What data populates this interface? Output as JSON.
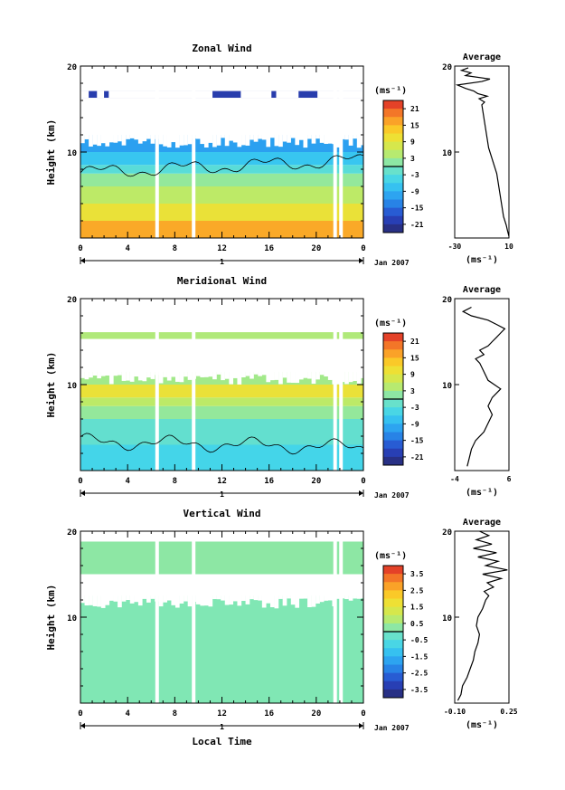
{
  "figure": {
    "x_label": "Local Time",
    "colorbar_unit": "(ms⁻¹)",
    "profile_unit": "(ms⁻¹)"
  },
  "chart_data": [
    {
      "type": "heatmap",
      "title": "Zonal Wind",
      "ylabel": "Height (km)",
      "xlim": [
        0,
        24
      ],
      "ylim": [
        0,
        20
      ],
      "x_ticks": [
        "0",
        "4",
        "8",
        "12",
        "16",
        "20",
        "0"
      ],
      "y_ticks": [
        "10",
        "20"
      ],
      "date_label": "1",
      "month_label": "Jan 2007",
      "colorbar": {
        "min": -24,
        "max": 24,
        "ticks": [
          "21",
          "15",
          "9",
          "3",
          "-3",
          "-9",
          "-15",
          "-21"
        ]
      },
      "profile": {
        "title": "Average",
        "xlim": [
          -30,
          10
        ],
        "x_ticks": [
          "-30",
          "10"
        ],
        "y_ticks": [
          "10",
          "20"
        ],
        "points": [
          [
            10,
            0.2
          ],
          [
            9,
            0.8
          ],
          [
            8,
            1.5
          ],
          [
            6,
            2.5
          ],
          [
            5,
            3.5
          ],
          [
            4,
            4.5
          ],
          [
            3,
            5.5
          ],
          [
            2,
            6.5
          ],
          [
            1,
            7.5
          ],
          [
            -1,
            8.5
          ],
          [
            -3,
            9.5
          ],
          [
            -5,
            10.5
          ],
          [
            -6,
            11.5
          ],
          [
            -7,
            12.5
          ],
          [
            -8,
            13.5
          ],
          [
            -9,
            14.5
          ],
          [
            -10,
            15.5
          ],
          [
            -8,
            15.8
          ],
          [
            -12,
            16.2
          ],
          [
            -6,
            16.5
          ],
          [
            -13,
            16.8
          ],
          [
            -16,
            17.1
          ],
          [
            -22,
            17.4
          ],
          [
            -28,
            17.8
          ],
          [
            -10,
            18.2
          ],
          [
            -4,
            18.5
          ],
          [
            -22,
            18.9
          ],
          [
            -18,
            19.2
          ],
          [
            -25,
            19.5
          ],
          [
            -20,
            19.8
          ]
        ]
      },
      "gaps": [
        6.5,
        9.6,
        21.6,
        22.1
      ],
      "valid_top": 12.0,
      "upper_band": [
        16.3,
        17.1
      ],
      "bands": [
        {
          "z0": 0,
          "z1": 2,
          "value": 16
        },
        {
          "z0": 2,
          "z1": 4,
          "value": 10
        },
        {
          "z0": 4,
          "z1": 6,
          "value": 5
        },
        {
          "z0": 6,
          "z1": 7.5,
          "value": 2
        },
        {
          "z0": 7.5,
          "z1": 8.5,
          "value": -3
        },
        {
          "z0": 8.5,
          "z1": 10,
          "value": -7
        },
        {
          "z0": 10,
          "z1": 12,
          "value": -11
        },
        {
          "z0": 16.3,
          "z1": 17.1,
          "value": -20
        }
      ]
    },
    {
      "type": "heatmap",
      "title": "Meridional Wind",
      "ylabel": "Height (km)",
      "xlim": [
        0,
        24
      ],
      "ylim": [
        0,
        20
      ],
      "x_ticks": [
        "0",
        "4",
        "8",
        "12",
        "16",
        "20",
        "0"
      ],
      "y_ticks": [
        "10",
        "20"
      ],
      "date_label": "1",
      "month_label": "Jan 2007",
      "colorbar": {
        "min": -24,
        "max": 24,
        "ticks": [
          "21",
          "15",
          "9",
          "3",
          "-3",
          "-9",
          "-15",
          "-21"
        ]
      },
      "profile": {
        "title": "Average",
        "xlim": [
          -6,
          7
        ],
        "x_ticks": [
          "-4",
          "6"
        ],
        "y_ticks": [
          "10",
          "20"
        ],
        "points": [
          [
            -3,
            0.5
          ],
          [
            -2.5,
            1.5
          ],
          [
            -2,
            2.5
          ],
          [
            -1,
            3.5
          ],
          [
            1,
            4.5
          ],
          [
            2,
            5.5
          ],
          [
            3,
            6.5
          ],
          [
            2,
            7.5
          ],
          [
            3,
            8.5
          ],
          [
            5,
            9.5
          ],
          [
            2,
            10.5
          ],
          [
            1,
            11.5
          ],
          [
            0,
            12.5
          ],
          [
            -1,
            13
          ],
          [
            1,
            13.5
          ],
          [
            0,
            14
          ],
          [
            2,
            14.5
          ],
          [
            3,
            15
          ],
          [
            4,
            15.5
          ],
          [
            5,
            16
          ],
          [
            6,
            16.5
          ],
          [
            4,
            17
          ],
          [
            2,
            17.5
          ],
          [
            -2,
            18
          ],
          [
            -4,
            18.5
          ],
          [
            -2,
            19
          ]
        ]
      },
      "gaps": [
        6.5,
        9.6,
        21.6,
        22.1
      ],
      "valid_top": 11.5,
      "upper_band": [
        15.3,
        16.1
      ],
      "bands": [
        {
          "z0": 0,
          "z1": 3,
          "value": -5
        },
        {
          "z0": 3,
          "z1": 6,
          "value": -2
        },
        {
          "z0": 6,
          "z1": 7.5,
          "value": 2
        },
        {
          "z0": 7.5,
          "z1": 8.5,
          "value": 5
        },
        {
          "z0": 8.5,
          "z1": 10,
          "value": 10
        },
        {
          "z0": 10,
          "z1": 11.5,
          "value": 3
        },
        {
          "z0": 15.3,
          "z1": 16.1,
          "value": 4
        }
      ]
    },
    {
      "type": "heatmap",
      "title": "Vertical Wind",
      "ylabel": "Height (km)",
      "xlim": [
        0,
        24
      ],
      "ylim": [
        0,
        20
      ],
      "x_ticks": [
        "0",
        "4",
        "8",
        "12",
        "16",
        "20",
        "0"
      ],
      "y_ticks": [
        "10",
        "20"
      ],
      "date_label": "1",
      "month_label": "Jan 2007",
      "colorbar": {
        "min": -4,
        "max": 4,
        "ticks": [
          "3.5",
          "2.5",
          "1.5",
          "0.5",
          "-0.5",
          "-1.5",
          "-2.5",
          "-3.5"
        ]
      },
      "profile": {
        "title": "Average",
        "xlim": [
          -0.1,
          0.25
        ],
        "x_ticks": [
          "-0.10",
          "0.25"
        ],
        "y_ticks": [
          "10",
          "20"
        ],
        "points": [
          [
            -0.08,
            0.3
          ],
          [
            -0.06,
            1
          ],
          [
            -0.05,
            2
          ],
          [
            -0.02,
            3
          ],
          [
            0,
            4
          ],
          [
            0.02,
            5
          ],
          [
            0.03,
            6
          ],
          [
            0.05,
            7
          ],
          [
            0.06,
            8
          ],
          [
            0.04,
            9
          ],
          [
            0.05,
            10
          ],
          [
            0.08,
            11
          ],
          [
            0.1,
            12
          ],
          [
            0.12,
            12.5
          ],
          [
            0.09,
            13
          ],
          [
            0.15,
            13.5
          ],
          [
            0.11,
            14
          ],
          [
            0.2,
            14.5
          ],
          [
            0.08,
            15
          ],
          [
            0.24,
            15.5
          ],
          [
            0.1,
            16
          ],
          [
            0.18,
            16.5
          ],
          [
            0.05,
            17
          ],
          [
            0.17,
            17.5
          ],
          [
            0.02,
            18
          ],
          [
            0.14,
            18.5
          ],
          [
            0.04,
            19
          ],
          [
            0.12,
            19.5
          ],
          [
            0.06,
            20
          ]
        ]
      },
      "gaps": [
        6.5,
        9.6,
        21.6,
        22.1
      ],
      "valid_top": 12.5,
      "upper_band": [
        15.0,
        18.8
      ],
      "bands": [
        {
          "z0": 0,
          "z1": 12.5,
          "value": 0.1
        },
        {
          "z0": 15.0,
          "z1": 18.8,
          "value": 0.25
        }
      ]
    }
  ]
}
